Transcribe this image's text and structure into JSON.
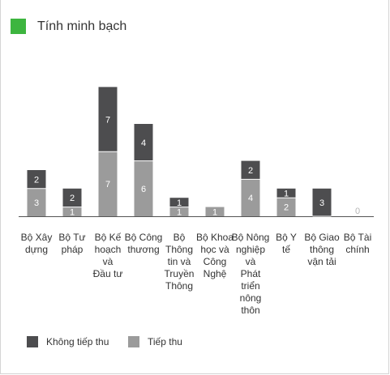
{
  "header": {
    "title": "Tính minh bạch",
    "accent_color": "#3db53f"
  },
  "chart_data": {
    "type": "bar",
    "stacked": true,
    "categories": [
      "Bộ Xây dựng",
      "Bộ Tư pháp",
      "Bộ Kế hoạch và Đầu tư",
      "Bộ Công thương",
      "Bộ Thông tin và Truyền Thông",
      "Bộ Khoa học và Công Nghệ",
      "Bộ Nông nghiệp và Phát triển nông thôn",
      "Bộ Y tế",
      "Bộ Giao thông vận tải",
      "Bộ Tài chính"
    ],
    "category_lines": [
      [
        "Bộ Xây",
        "dựng"
      ],
      [
        "Bộ Tư",
        "pháp"
      ],
      [
        "Bộ Kế",
        "hoạch và",
        "Đầu tư"
      ],
      [
        "Bộ Công",
        "thương"
      ],
      [
        "Bộ",
        "Thông",
        "tin và",
        "Truyền",
        "Thông"
      ],
      [
        "Bộ Khoa",
        "học và",
        "Công",
        "Nghệ"
      ],
      [
        "Bộ Nông",
        "nghiệp và",
        "Phát triển",
        "nông thôn"
      ],
      [
        "Bộ Y",
        "tế"
      ],
      [
        "Bộ Giao",
        "thông",
        "vận tải"
      ],
      [
        "Bộ Tài",
        "chính"
      ]
    ],
    "series": [
      {
        "name": "Tiếp thu",
        "color": "#9b9b9b",
        "values": [
          3,
          1,
          7,
          6,
          1,
          1,
          4,
          2,
          0,
          0
        ]
      },
      {
        "name": "Không tiếp thu",
        "color": "#4d4d4f",
        "values": [
          2,
          2,
          7,
          4,
          1,
          0,
          2,
          1,
          3,
          0
        ]
      }
    ],
    "totals_label_for_zero": "0",
    "ylim": [
      0,
      14
    ],
    "grid": false,
    "legend_position": "bottom-left",
    "legend_order": [
      "Không tiếp thu",
      "Tiếp thu"
    ]
  }
}
